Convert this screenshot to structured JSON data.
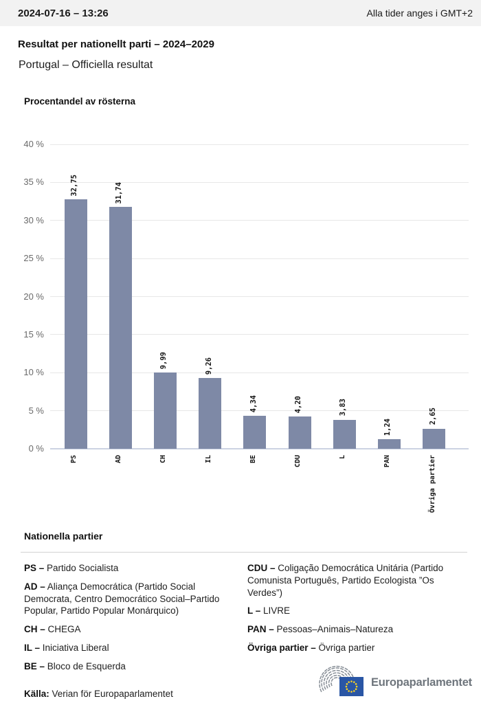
{
  "header": {
    "datetime": "2024-07-16 – 13:26",
    "timezone_note": "Alla tider anges i GMT+2"
  },
  "title": "Resultat per nationellt parti – 2024–2029",
  "subtitle": "Portugal – Officiella resultat",
  "chart_data": {
    "type": "bar",
    "title": "Procentandel av rösterna",
    "categories": [
      "PS",
      "AD",
      "CH",
      "IL",
      "BE",
      "CDU",
      "L",
      "PAN",
      "Övriga partier"
    ],
    "values": [
      32.75,
      31.74,
      9.99,
      9.26,
      4.34,
      4.2,
      3.83,
      1.24,
      2.65
    ],
    "value_labels": [
      "32,75",
      "31,74",
      "9,99",
      "9,26",
      "4,34",
      "4,20",
      "3,83",
      "1,24",
      "2,65"
    ],
    "xlabel": "",
    "ylabel": "Procentandel av rösterna",
    "ylim": [
      0,
      40
    ],
    "yticks": [
      "0 %",
      "5 %",
      "10 %",
      "15 %",
      "20 %",
      "25 %",
      "30 %",
      "35 %",
      "40 %"
    ],
    "grid": true,
    "legend_position": "none",
    "bar_color": "#7e89a6"
  },
  "legend": {
    "heading": "Nationella partier",
    "separator": " – ",
    "columns": [
      [
        {
          "abbr": "PS",
          "name": "Partido Socialista"
        },
        {
          "abbr": "AD",
          "name": "Aliança Democrática (Partido Social Democrata, Centro Democrático Social–Partido Popular, Partido Popular Monárquico)"
        },
        {
          "abbr": "CH",
          "name": "CHEGA"
        },
        {
          "abbr": "IL",
          "name": "Iniciativa Liberal"
        },
        {
          "abbr": "BE",
          "name": "Bloco de Esquerda"
        }
      ],
      [
        {
          "abbr": "CDU",
          "name": "Coligação Democrática Unitária (Partido Comunista Português, Partido Ecologista ”Os Verdes”)"
        },
        {
          "abbr": "L",
          "name": "LIVRE"
        },
        {
          "abbr": "PAN",
          "name": "Pessoas–Animais–Natureza"
        },
        {
          "abbr": "Övriga partier",
          "name": "Övriga partier"
        }
      ]
    ]
  },
  "footer": {
    "source_label": "Källa:",
    "source_text": " Verian för Europaparlamentet",
    "logo_text": "Europaparlamentet"
  }
}
